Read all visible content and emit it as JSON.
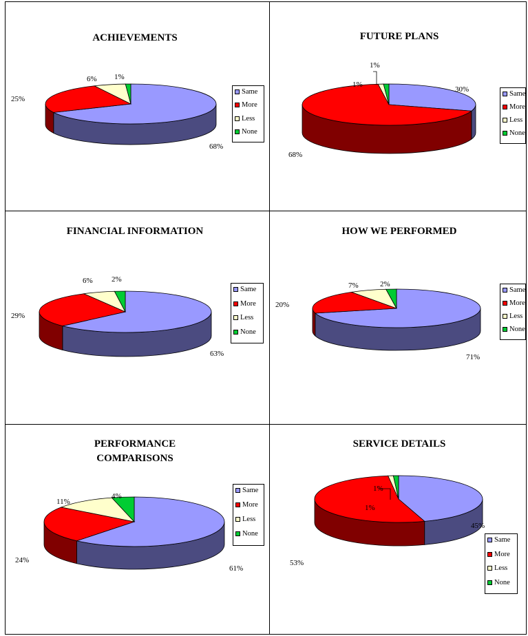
{
  "chart_data": [
    {
      "type": "pie",
      "title": "ACHIEVEMENTS",
      "categories": [
        "Same",
        "More",
        "Less",
        "None"
      ],
      "values": [
        68,
        25,
        6,
        1
      ],
      "labels": [
        "68%",
        "25%",
        "6%",
        "1%"
      ]
    },
    {
      "type": "pie",
      "title": "FUTURE PLANS",
      "categories": [
        "Same",
        "More",
        "Less",
        "None"
      ],
      "values": [
        30,
        68,
        1,
        1
      ],
      "labels": [
        "30%",
        "68%",
        "1%",
        "1%"
      ]
    },
    {
      "type": "pie",
      "title": "FINANCIAL INFORMATION",
      "categories": [
        "Same",
        "More",
        "Less",
        "None"
      ],
      "values": [
        63,
        29,
        6,
        2
      ],
      "labels": [
        "63%",
        "29%",
        "6%",
        "2%"
      ]
    },
    {
      "type": "pie",
      "title": "HOW WE PERFORMED",
      "categories": [
        "Same",
        "More",
        "Less",
        "None"
      ],
      "values": [
        71,
        20,
        7,
        2
      ],
      "labels": [
        "71%",
        "20%",
        "7%",
        "2%"
      ]
    },
    {
      "type": "pie",
      "title": "PERFORMANCE COMPARISONS",
      "title_lines": [
        "PERFORMANCE",
        "COMPARISONS"
      ],
      "categories": [
        "Same",
        "More",
        "Less",
        "None"
      ],
      "values": [
        61,
        24,
        11,
        4
      ],
      "labels": [
        "61%",
        "24%",
        "11%",
        "4%"
      ]
    },
    {
      "type": "pie",
      "title": "SERVICE DETAILS",
      "categories": [
        "Same",
        "More",
        "Less",
        "None"
      ],
      "values": [
        45,
        53,
        1,
        1
      ],
      "labels": [
        "45%",
        "53%",
        "1%",
        "1%"
      ]
    }
  ],
  "colors": {
    "Same": "#9999ff",
    "More": "#ff0000",
    "Less": "#ffffcc",
    "None": "#00cc33"
  }
}
